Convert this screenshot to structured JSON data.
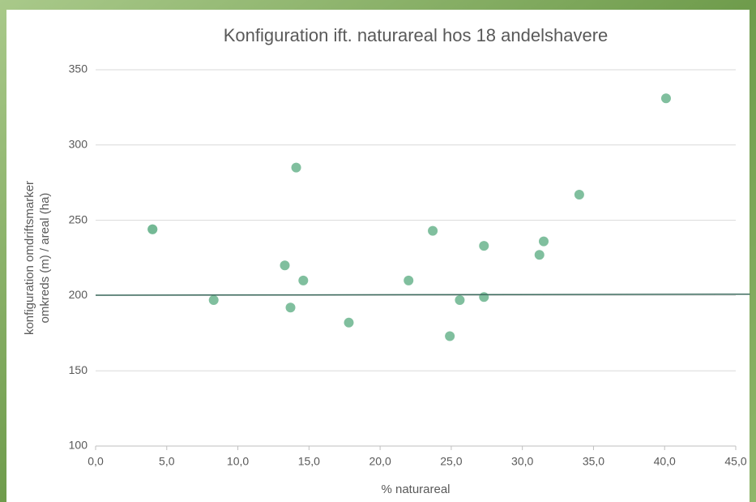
{
  "chart_data": {
    "type": "scatter",
    "title": "Konfiguration ift. naturareal hos 18 andelshavere",
    "xlabel": "% naturareal",
    "ylabel": [
      "konfiguration omdriftsmarker",
      "omkreds (m) / areal (ha)"
    ],
    "x": [
      4.0,
      4.0,
      8.3,
      13.3,
      13.7,
      14.1,
      14.6,
      17.8,
      22.0,
      23.7,
      24.9,
      25.6,
      27.3,
      27.3,
      31.2,
      31.5,
      34.0,
      40.1
    ],
    "values": [
      244,
      244,
      197,
      220,
      192,
      285,
      210,
      182,
      210,
      243,
      173,
      197,
      199,
      233,
      227,
      236,
      267,
      331
    ],
    "color": "#72b894",
    "trendline": {
      "x": [
        0,
        46
      ],
      "values": [
        200.2,
        200.9
      ],
      "color": "#3d6b5e"
    },
    "xlim": [
      0,
      45
    ],
    "xticks": [
      {
        "value": 0,
        "label": "0,0"
      },
      {
        "value": 5,
        "label": "5,0"
      },
      {
        "value": 10,
        "label": "10,0"
      },
      {
        "value": 15,
        "label": "15,0"
      },
      {
        "value": 20,
        "label": "20,0"
      },
      {
        "value": 25,
        "label": "25,0"
      },
      {
        "value": 30,
        "label": "30,0"
      },
      {
        "value": 35,
        "label": "35,0"
      },
      {
        "value": 40,
        "label": "40,0"
      },
      {
        "value": 45,
        "label": "45,0"
      }
    ],
    "ylim": [
      100,
      350
    ],
    "yticks": [
      100,
      150,
      200,
      250,
      300,
      350
    ],
    "grid": true
  }
}
